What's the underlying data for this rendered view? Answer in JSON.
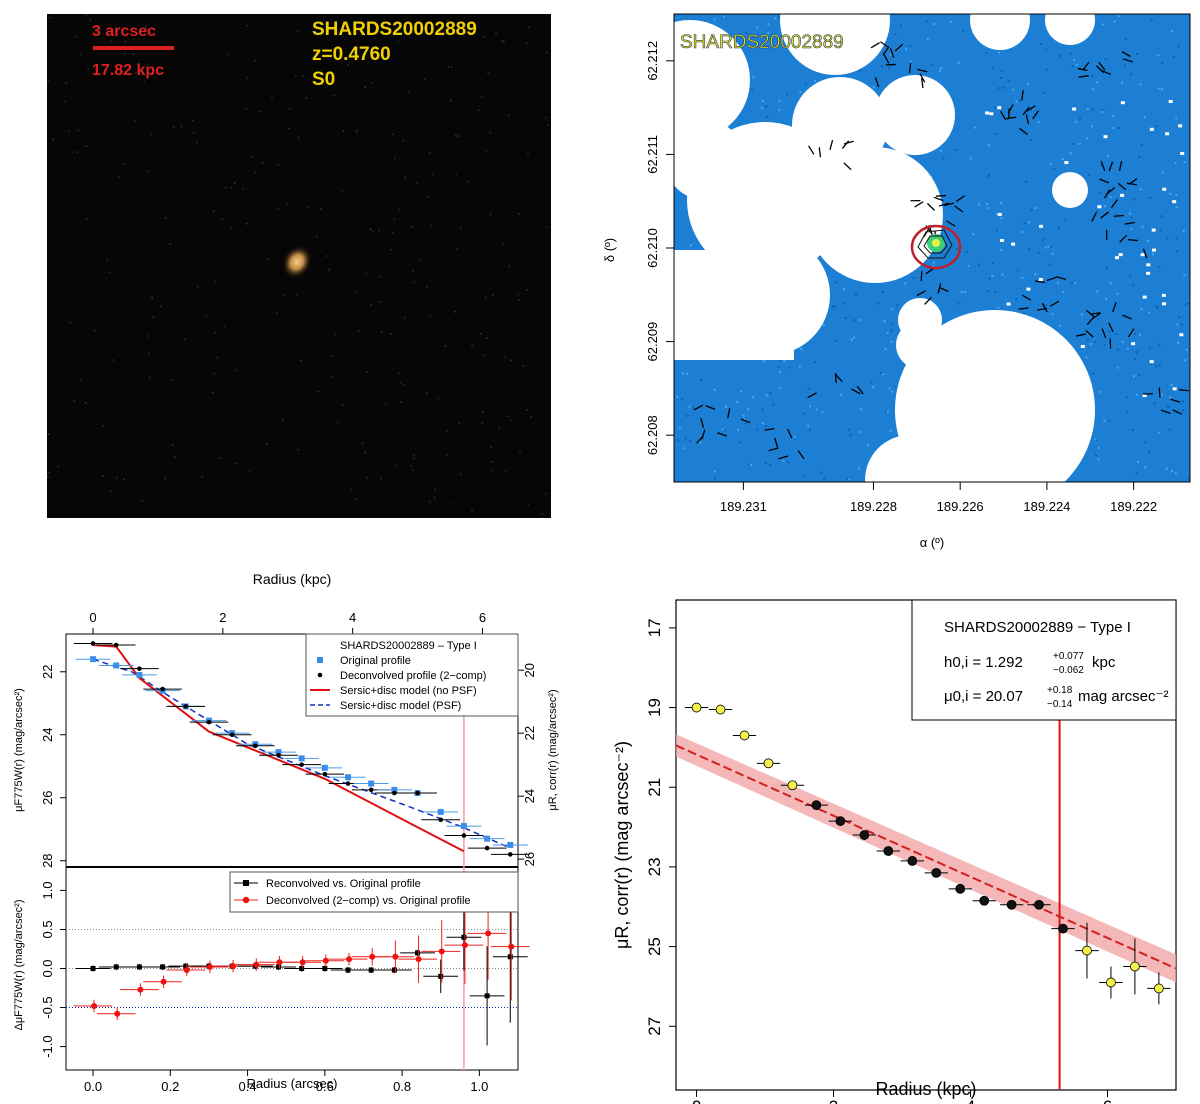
{
  "panel_a": {
    "scale_angular": "3 arcsec",
    "scale_physical": "17.82 kpc",
    "object_name": "SHARDS20002889",
    "redshift": "z=0.4760",
    "morphology": "S0"
  },
  "panel_b": {
    "label": "SHARDS20002889",
    "xlabel": "α (º)",
    "ylabel": "δ (º)"
  },
  "chart_data": [
    {
      "id": "sky-map",
      "type": "scatter",
      "title": "SHARDS20002889",
      "xlabel": "α (º)",
      "ylabel": "δ (º)",
      "x_ticks": [
        189.231,
        189.228,
        189.226,
        189.224,
        189.222
      ],
      "y_ticks": [
        62.208,
        62.209,
        62.21,
        62.211,
        62.212
      ],
      "xlim": [
        189.2326,
        189.2207
      ],
      "ylim": [
        62.2075,
        62.2125
      ],
      "target": {
        "x": 189.226,
        "y": 62.2101
      }
    },
    {
      "id": "profile-top",
      "type": "line",
      "title": "SHARDS20002889 – Type I",
      "xlabel": "Radius (kpc)",
      "ylabel": "μF775W(r) (mag/arcsec²)",
      "ylabel2": "μR, corr(r) (mag/arcsec²)",
      "xlim": [
        -0.07,
        1.1
      ],
      "ylim": [
        28.2,
        20.8
      ],
      "kpc_ticks": [
        0,
        2,
        4,
        6
      ],
      "y_ticks": [
        22,
        24,
        26,
        28
      ],
      "y2_ticks": [
        20,
        22,
        24,
        26
      ],
      "legend": [
        "Original profile",
        "Deconvolved profile (2−comp)",
        "Sersic+disc model (no PSF)",
        "Sersic+disc model (PSF)"
      ],
      "x": [
        0.0,
        0.06,
        0.12,
        0.18,
        0.24,
        0.3,
        0.36,
        0.42,
        0.48,
        0.54,
        0.6,
        0.66,
        0.72,
        0.78,
        0.84,
        0.9,
        0.96,
        1.02,
        1.08
      ],
      "series": [
        {
          "name": "Original profile",
          "values": [
            21.6,
            21.8,
            22.1,
            22.6,
            23.1,
            23.55,
            23.95,
            24.3,
            24.55,
            24.75,
            25.05,
            25.35,
            25.55,
            25.75,
            25.85,
            26.45,
            26.9,
            27.3,
            27.5
          ]
        },
        {
          "name": "Deconvolved profile (2−comp)",
          "values": [
            21.1,
            21.15,
            21.9,
            22.55,
            23.1,
            23.6,
            24.0,
            24.35,
            24.65,
            24.95,
            25.25,
            25.55,
            25.75,
            25.85,
            25.85,
            26.7,
            27.2,
            27.6,
            27.8
          ]
        },
        {
          "name": "Sersic+disc model (no PSF)",
          "x": [
            0.0,
            0.06,
            0.12,
            0.3,
            0.6,
            0.85,
            0.96
          ],
          "values": [
            21.15,
            21.2,
            22.2,
            23.9,
            25.4,
            27.0,
            27.7
          ]
        },
        {
          "name": "Sersic+disc model (PSF)",
          "x": [
            0.0,
            0.1,
            0.2,
            0.4,
            0.6,
            0.8,
            0.95,
            1.08
          ],
          "values": [
            21.6,
            22.0,
            22.8,
            24.3,
            25.3,
            26.2,
            26.9,
            27.6
          ]
        }
      ],
      "break_radius": 0.96
    },
    {
      "id": "profile-residuals",
      "type": "scatter",
      "xlabel": "Radius (arcsec)",
      "ylabel": "ΔμF775W(r) (mag/arcsec²)",
      "xlim": [
        -0.07,
        1.1
      ],
      "ylim": [
        -1.3,
        1.3
      ],
      "x_ticks": [
        0.0,
        0.2,
        0.4,
        0.6,
        0.8,
        1.0
      ],
      "y_ticks": [
        -1.0,
        -0.5,
        0.0,
        0.5,
        1.0
      ],
      "legend": [
        "Reconvolved vs. Original profile",
        "Deconvolved (2−comp) vs. Original profile"
      ],
      "x": [
        0.0,
        0.06,
        0.12,
        0.18,
        0.24,
        0.3,
        0.36,
        0.42,
        0.48,
        0.54,
        0.6,
        0.66,
        0.72,
        0.78,
        0.84,
        0.9,
        0.96,
        1.02,
        1.08
      ],
      "series": [
        {
          "name": "Reconvolved vs. Original profile",
          "values": [
            0.0,
            0.02,
            0.02,
            0.02,
            0.03,
            0.03,
            0.03,
            0.03,
            0.02,
            0.0,
            0.0,
            -0.02,
            -0.02,
            -0.02,
            0.2,
            -0.1,
            0.4,
            -0.35,
            0.15
          ]
        },
        {
          "name": "Deconvolved (2−comp) vs. Original profile",
          "values": [
            -0.48,
            -0.58,
            -0.27,
            -0.17,
            -0.02,
            0.02,
            0.03,
            0.05,
            0.08,
            0.08,
            0.1,
            0.12,
            0.15,
            0.15,
            0.12,
            0.22,
            0.3,
            0.45,
            0.28
          ]
        }
      ]
    },
    {
      "id": "disc-fit",
      "type": "scatter",
      "xlabel": "Radius (kpc)",
      "ylabel": "μR, corr(r) (mag arcsec⁻²)",
      "xlim": [
        -0.3,
        7.0
      ],
      "ylim": [
        28.6,
        16.3
      ],
      "x_ticks": [
        0,
        2,
        4,
        6
      ],
      "y_ticks": [
        17,
        19,
        21,
        23,
        25,
        27
      ],
      "break_radius": 5.3,
      "fit_line": {
        "x": [
          -0.3,
          7.0
        ],
        "y": [
          19.95,
          25.55
        ]
      },
      "excluded_points": {
        "x": [
          0.0,
          0.35,
          0.7,
          1.05,
          1.4,
          5.7,
          6.05,
          6.4,
          6.75
        ],
        "y": [
          19.0,
          19.05,
          19.7,
          20.4,
          20.95,
          25.1,
          25.9,
          25.5,
          26.05
        ]
      },
      "fitted_points": {
        "x": [
          1.75,
          2.1,
          2.45,
          2.8,
          3.15,
          3.5,
          3.85,
          4.2,
          4.6,
          5.0,
          5.35
        ],
        "y": [
          21.45,
          21.85,
          22.2,
          22.6,
          22.85,
          23.15,
          23.55,
          23.85,
          23.95,
          23.95,
          24.55
        ]
      },
      "legend_title": "SHARDS20002889  − Type I",
      "h_label": "h0,i = 1.292",
      "h_err_plus": "+0.077",
      "h_err_minus": "−0.062",
      "h_unit": "kpc",
      "mu_label": "μ0,i = 20.07",
      "mu_err_plus": "+0.18",
      "mu_err_minus": "−0.14",
      "mu_unit": "mag arcsec⁻²"
    }
  ]
}
